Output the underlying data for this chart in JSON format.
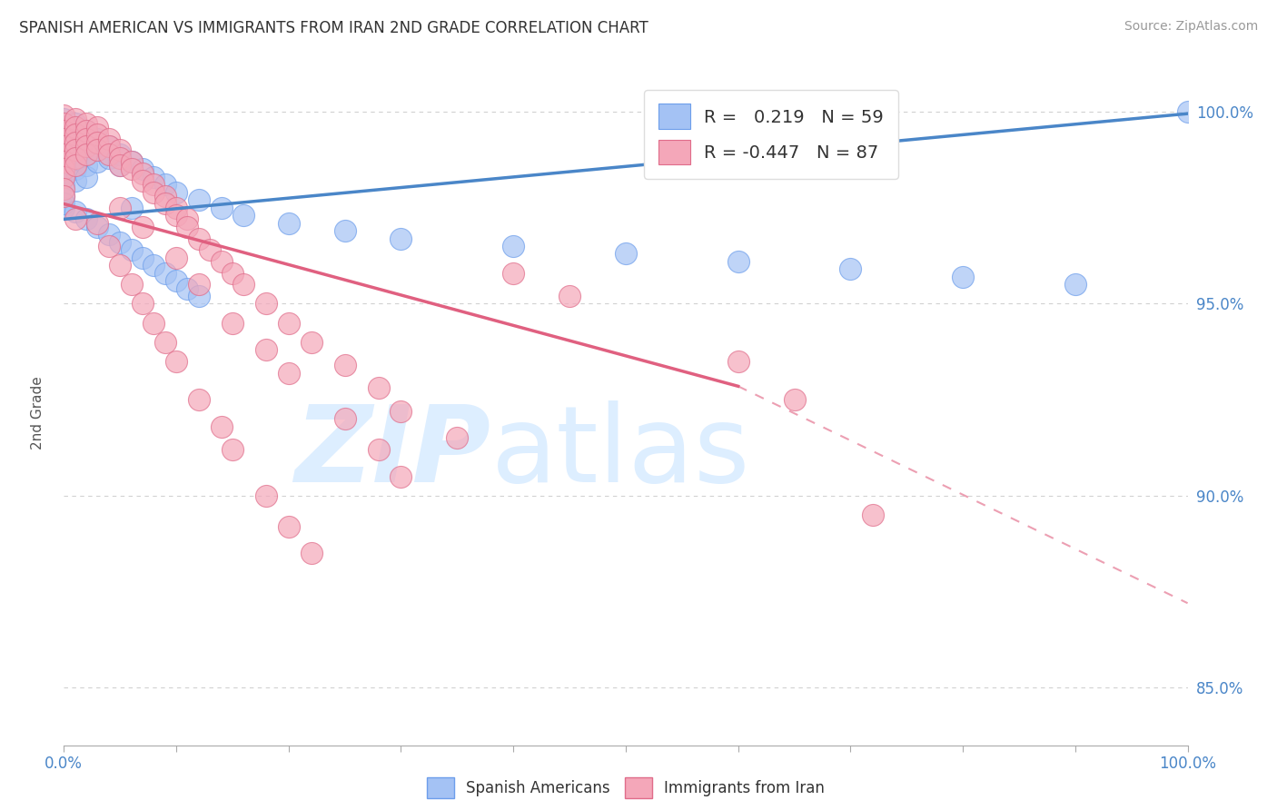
{
  "title": "SPANISH AMERICAN VS IMMIGRANTS FROM IRAN 2ND GRADE CORRELATION CHART",
  "source_text": "Source: ZipAtlas.com",
  "ylabel": "2nd Grade",
  "x_min": 0.0,
  "x_max": 1.0,
  "y_min": 0.835,
  "y_max": 1.008,
  "y_ticks": [
    0.85,
    0.9,
    0.95,
    1.0
  ],
  "y_tick_labels": [
    "85.0%",
    "90.0%",
    "95.0%",
    "100.0%"
  ],
  "blue_R": 0.219,
  "blue_N": 59,
  "pink_R": -0.447,
  "pink_N": 87,
  "blue_color": "#a4c2f4",
  "pink_color": "#f4a7b9",
  "blue_edge_color": "#6d9eeb",
  "pink_edge_color": "#e06c8a",
  "blue_line_color": "#4a86c8",
  "pink_line_color": "#e06080",
  "grid_color": "#cccccc",
  "watermark_color": "#ddeeff",
  "title_color": "#333333",
  "axis_label_color": "#4a86c8",
  "blue_trend": [
    0.0,
    0.972,
    1.0,
    0.9995
  ],
  "pink_trend_solid": [
    0.0,
    0.976,
    0.6,
    0.9285
  ],
  "pink_trend_dash": [
    0.6,
    0.9285,
    1.0,
    0.872
  ],
  "blue_scatter_x": [
    0.0,
    0.0,
    0.0,
    0.0,
    0.0,
    0.0,
    0.0,
    0.0,
    0.0,
    0.01,
    0.01,
    0.01,
    0.01,
    0.01,
    0.01,
    0.02,
    0.02,
    0.02,
    0.02,
    0.02,
    0.03,
    0.03,
    0.03,
    0.04,
    0.04,
    0.05,
    0.05,
    0.06,
    0.07,
    0.08,
    0.09,
    0.1,
    0.12,
    0.14,
    0.16,
    0.2,
    0.25,
    0.3,
    0.4,
    0.5,
    0.6,
    0.7,
    0.8,
    0.9,
    0.0,
    0.01,
    0.02,
    0.03,
    0.04,
    0.05,
    0.06,
    0.07,
    0.08,
    0.09,
    0.1,
    0.11,
    0.12,
    0.06,
    1.0
  ],
  "blue_scatter_y": [
    0.998,
    0.996,
    0.993,
    0.99,
    0.987,
    0.984,
    0.981,
    0.978,
    0.975,
    0.997,
    0.994,
    0.991,
    0.988,
    0.985,
    0.982,
    0.995,
    0.992,
    0.989,
    0.986,
    0.983,
    0.993,
    0.99,
    0.987,
    0.991,
    0.988,
    0.989,
    0.986,
    0.987,
    0.985,
    0.983,
    0.981,
    0.979,
    0.977,
    0.975,
    0.973,
    0.971,
    0.969,
    0.967,
    0.965,
    0.963,
    0.961,
    0.959,
    0.957,
    0.955,
    0.976,
    0.974,
    0.972,
    0.97,
    0.968,
    0.966,
    0.964,
    0.962,
    0.96,
    0.958,
    0.956,
    0.954,
    0.952,
    0.975,
    1.0
  ],
  "pink_scatter_x": [
    0.0,
    0.0,
    0.0,
    0.0,
    0.0,
    0.0,
    0.0,
    0.0,
    0.0,
    0.0,
    0.01,
    0.01,
    0.01,
    0.01,
    0.01,
    0.01,
    0.01,
    0.02,
    0.02,
    0.02,
    0.02,
    0.02,
    0.03,
    0.03,
    0.03,
    0.03,
    0.04,
    0.04,
    0.04,
    0.05,
    0.05,
    0.05,
    0.06,
    0.06,
    0.07,
    0.07,
    0.08,
    0.08,
    0.09,
    0.09,
    0.1,
    0.1,
    0.11,
    0.11,
    0.12,
    0.13,
    0.14,
    0.15,
    0.16,
    0.18,
    0.2,
    0.22,
    0.25,
    0.28,
    0.3,
    0.35,
    0.4,
    0.45,
    0.05,
    0.07,
    0.1,
    0.12,
    0.15,
    0.18,
    0.2,
    0.25,
    0.28,
    0.3,
    0.03,
    0.04,
    0.05,
    0.06,
    0.07,
    0.08,
    0.09,
    0.1,
    0.12,
    0.14,
    0.15,
    0.18,
    0.2,
    0.22,
    0.6,
    0.65,
    0.72,
    0.0,
    0.01
  ],
  "pink_scatter_y": [
    0.999,
    0.997,
    0.995,
    0.993,
    0.991,
    0.989,
    0.987,
    0.985,
    0.983,
    0.98,
    0.998,
    0.996,
    0.994,
    0.992,
    0.99,
    0.988,
    0.986,
    0.997,
    0.995,
    0.993,
    0.991,
    0.989,
    0.996,
    0.994,
    0.992,
    0.99,
    0.993,
    0.991,
    0.989,
    0.99,
    0.988,
    0.986,
    0.987,
    0.985,
    0.984,
    0.982,
    0.981,
    0.979,
    0.978,
    0.976,
    0.975,
    0.973,
    0.972,
    0.97,
    0.967,
    0.964,
    0.961,
    0.958,
    0.955,
    0.95,
    0.945,
    0.94,
    0.934,
    0.928,
    0.922,
    0.915,
    0.958,
    0.952,
    0.975,
    0.97,
    0.962,
    0.955,
    0.945,
    0.938,
    0.932,
    0.92,
    0.912,
    0.905,
    0.971,
    0.965,
    0.96,
    0.955,
    0.95,
    0.945,
    0.94,
    0.935,
    0.925,
    0.918,
    0.912,
    0.9,
    0.892,
    0.885,
    0.935,
    0.925,
    0.895,
    0.978,
    0.972
  ]
}
